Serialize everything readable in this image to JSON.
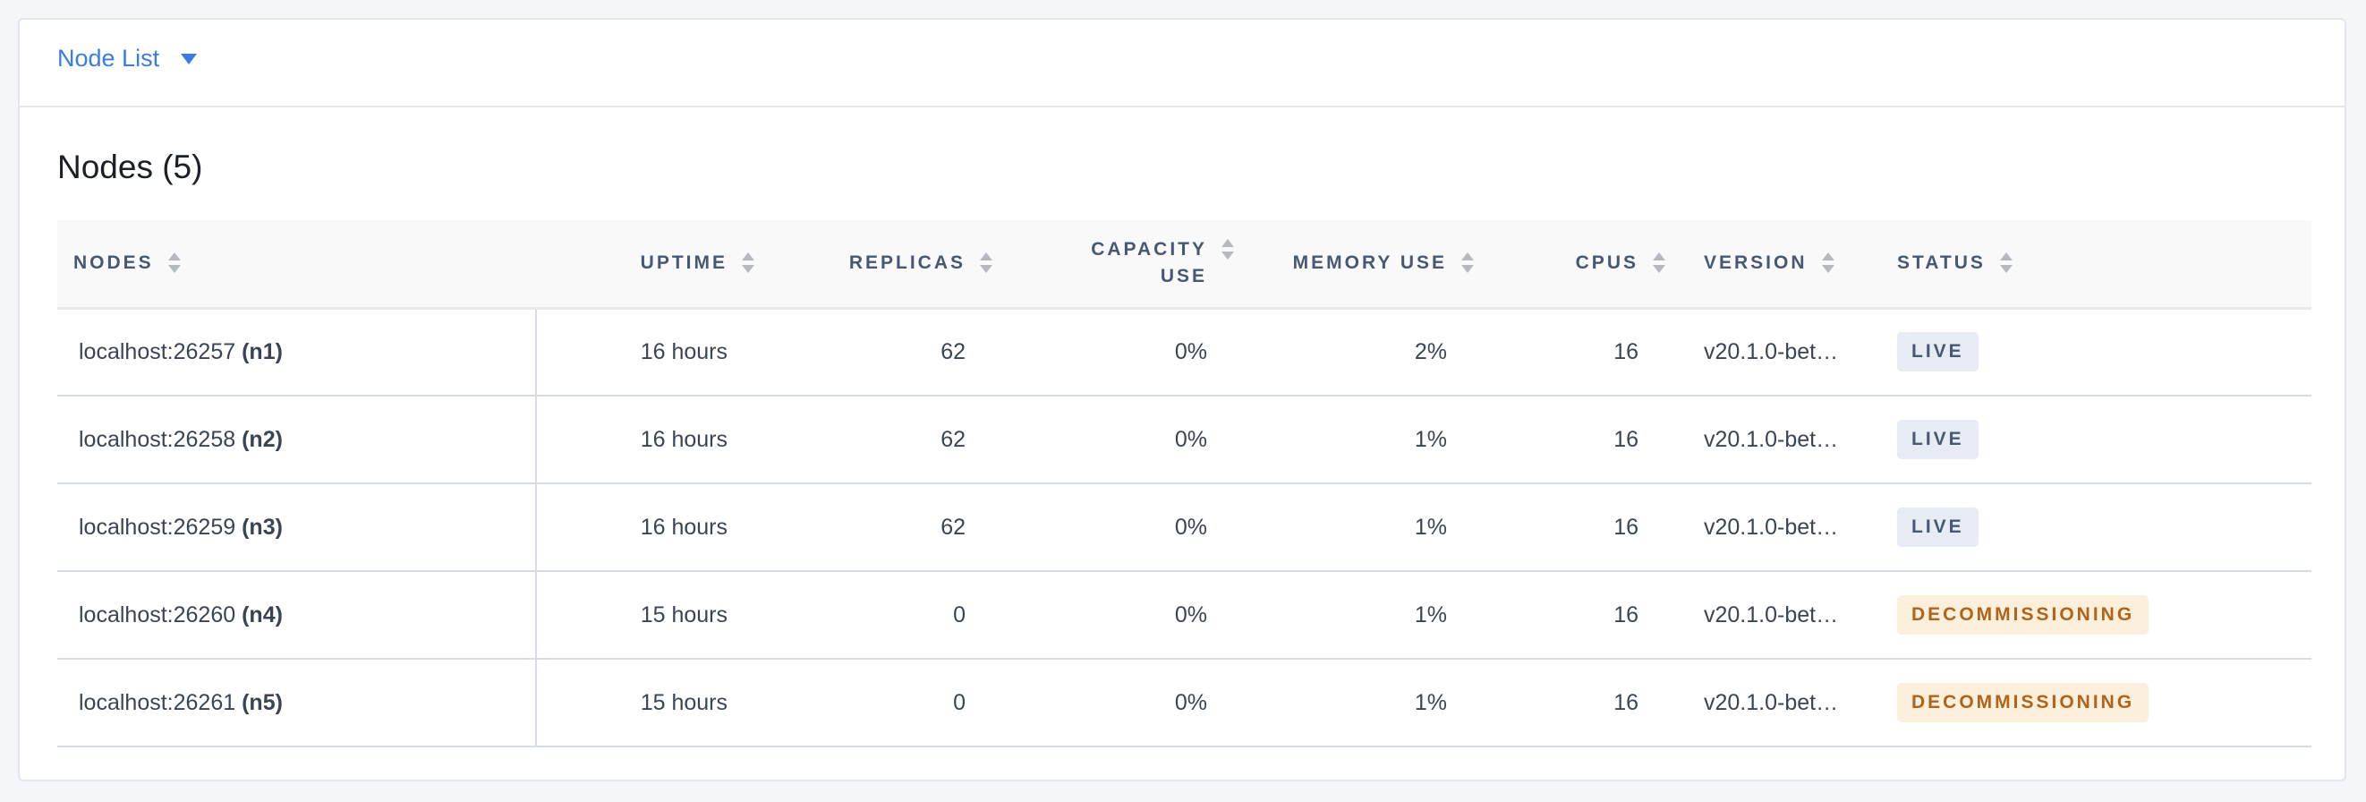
{
  "header": {
    "dropdown_label": "Node List",
    "dropdown_icon": "caret-down-icon"
  },
  "title": "Nodes (5)",
  "columns": {
    "nodes": "NODES",
    "uptime": "UPTIME",
    "replicas": "REPLICAS",
    "capacity_line1": "CAPACITY",
    "capacity_line2": "USE",
    "memory": "MEMORY USE",
    "cpus": "CPUS",
    "version": "VERSION",
    "status": "STATUS"
  },
  "colors": {
    "accent": "#3a7de1",
    "live_bg": "#e7ebf3",
    "live_text": "#475872",
    "decommissioning_bg": "#fcf0dd",
    "decommissioning_text": "#b0631a"
  },
  "rows": [
    {
      "address": "localhost:26257",
      "id": "(n1)",
      "uptime": "16 hours",
      "replicas": "62",
      "capacity": "0%",
      "memory": "2%",
      "cpus": "16",
      "version": "v20.1.0-bet…",
      "status": "LIVE",
      "status_kind": "live"
    },
    {
      "address": "localhost:26258",
      "id": "(n2)",
      "uptime": "16 hours",
      "replicas": "62",
      "capacity": "0%",
      "memory": "1%",
      "cpus": "16",
      "version": "v20.1.0-bet…",
      "status": "LIVE",
      "status_kind": "live"
    },
    {
      "address": "localhost:26259",
      "id": "(n3)",
      "uptime": "16 hours",
      "replicas": "62",
      "capacity": "0%",
      "memory": "1%",
      "cpus": "16",
      "version": "v20.1.0-bet…",
      "status": "LIVE",
      "status_kind": "live"
    },
    {
      "address": "localhost:26260",
      "id": "(n4)",
      "uptime": "15 hours",
      "replicas": "0",
      "capacity": "0%",
      "memory": "1%",
      "cpus": "16",
      "version": "v20.1.0-bet…",
      "status": "DECOMMISSIONING",
      "status_kind": "decom"
    },
    {
      "address": "localhost:26261",
      "id": "(n5)",
      "uptime": "15 hours",
      "replicas": "0",
      "capacity": "0%",
      "memory": "1%",
      "cpus": "16",
      "version": "v20.1.0-bet…",
      "status": "DECOMMISSIONING",
      "status_kind": "decom"
    }
  ]
}
